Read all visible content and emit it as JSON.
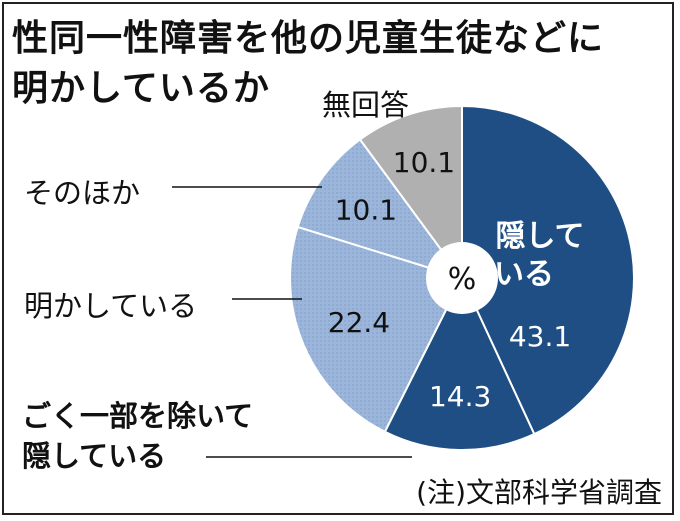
{
  "title_lines": [
    "性同一性障害を他の児童生徒などに",
    "明かしているか"
  ],
  "note": "(注)文部科学省調査",
  "center_label": "%",
  "chart_data": {
    "type": "pie",
    "title": "性同一性障害を他の児童生徒などに明かしているか",
    "unit": "%",
    "slices": [
      {
        "label_lines": [
          "隠して",
          "いる"
        ],
        "value": 43.1,
        "color": "#1f4e84",
        "label_color": "#ffffff"
      },
      {
        "label_lines": [
          "ごく一部を除いて",
          "隠している"
        ],
        "value": 14.3,
        "color": "#1f4e84",
        "label_color": "#ffffff"
      },
      {
        "label_lines": [
          "明かしている"
        ],
        "value": 22.4,
        "color": "#9bb6da",
        "label_color": "#111111"
      },
      {
        "label_lines": [
          "そのほか"
        ],
        "value": 10.1,
        "color": "#9bb6da",
        "label_color": "#111111"
      },
      {
        "label_lines": [
          "無回答"
        ],
        "value": 10.1,
        "color": "#b0b0b0",
        "label_color": "#111111"
      }
    ]
  }
}
